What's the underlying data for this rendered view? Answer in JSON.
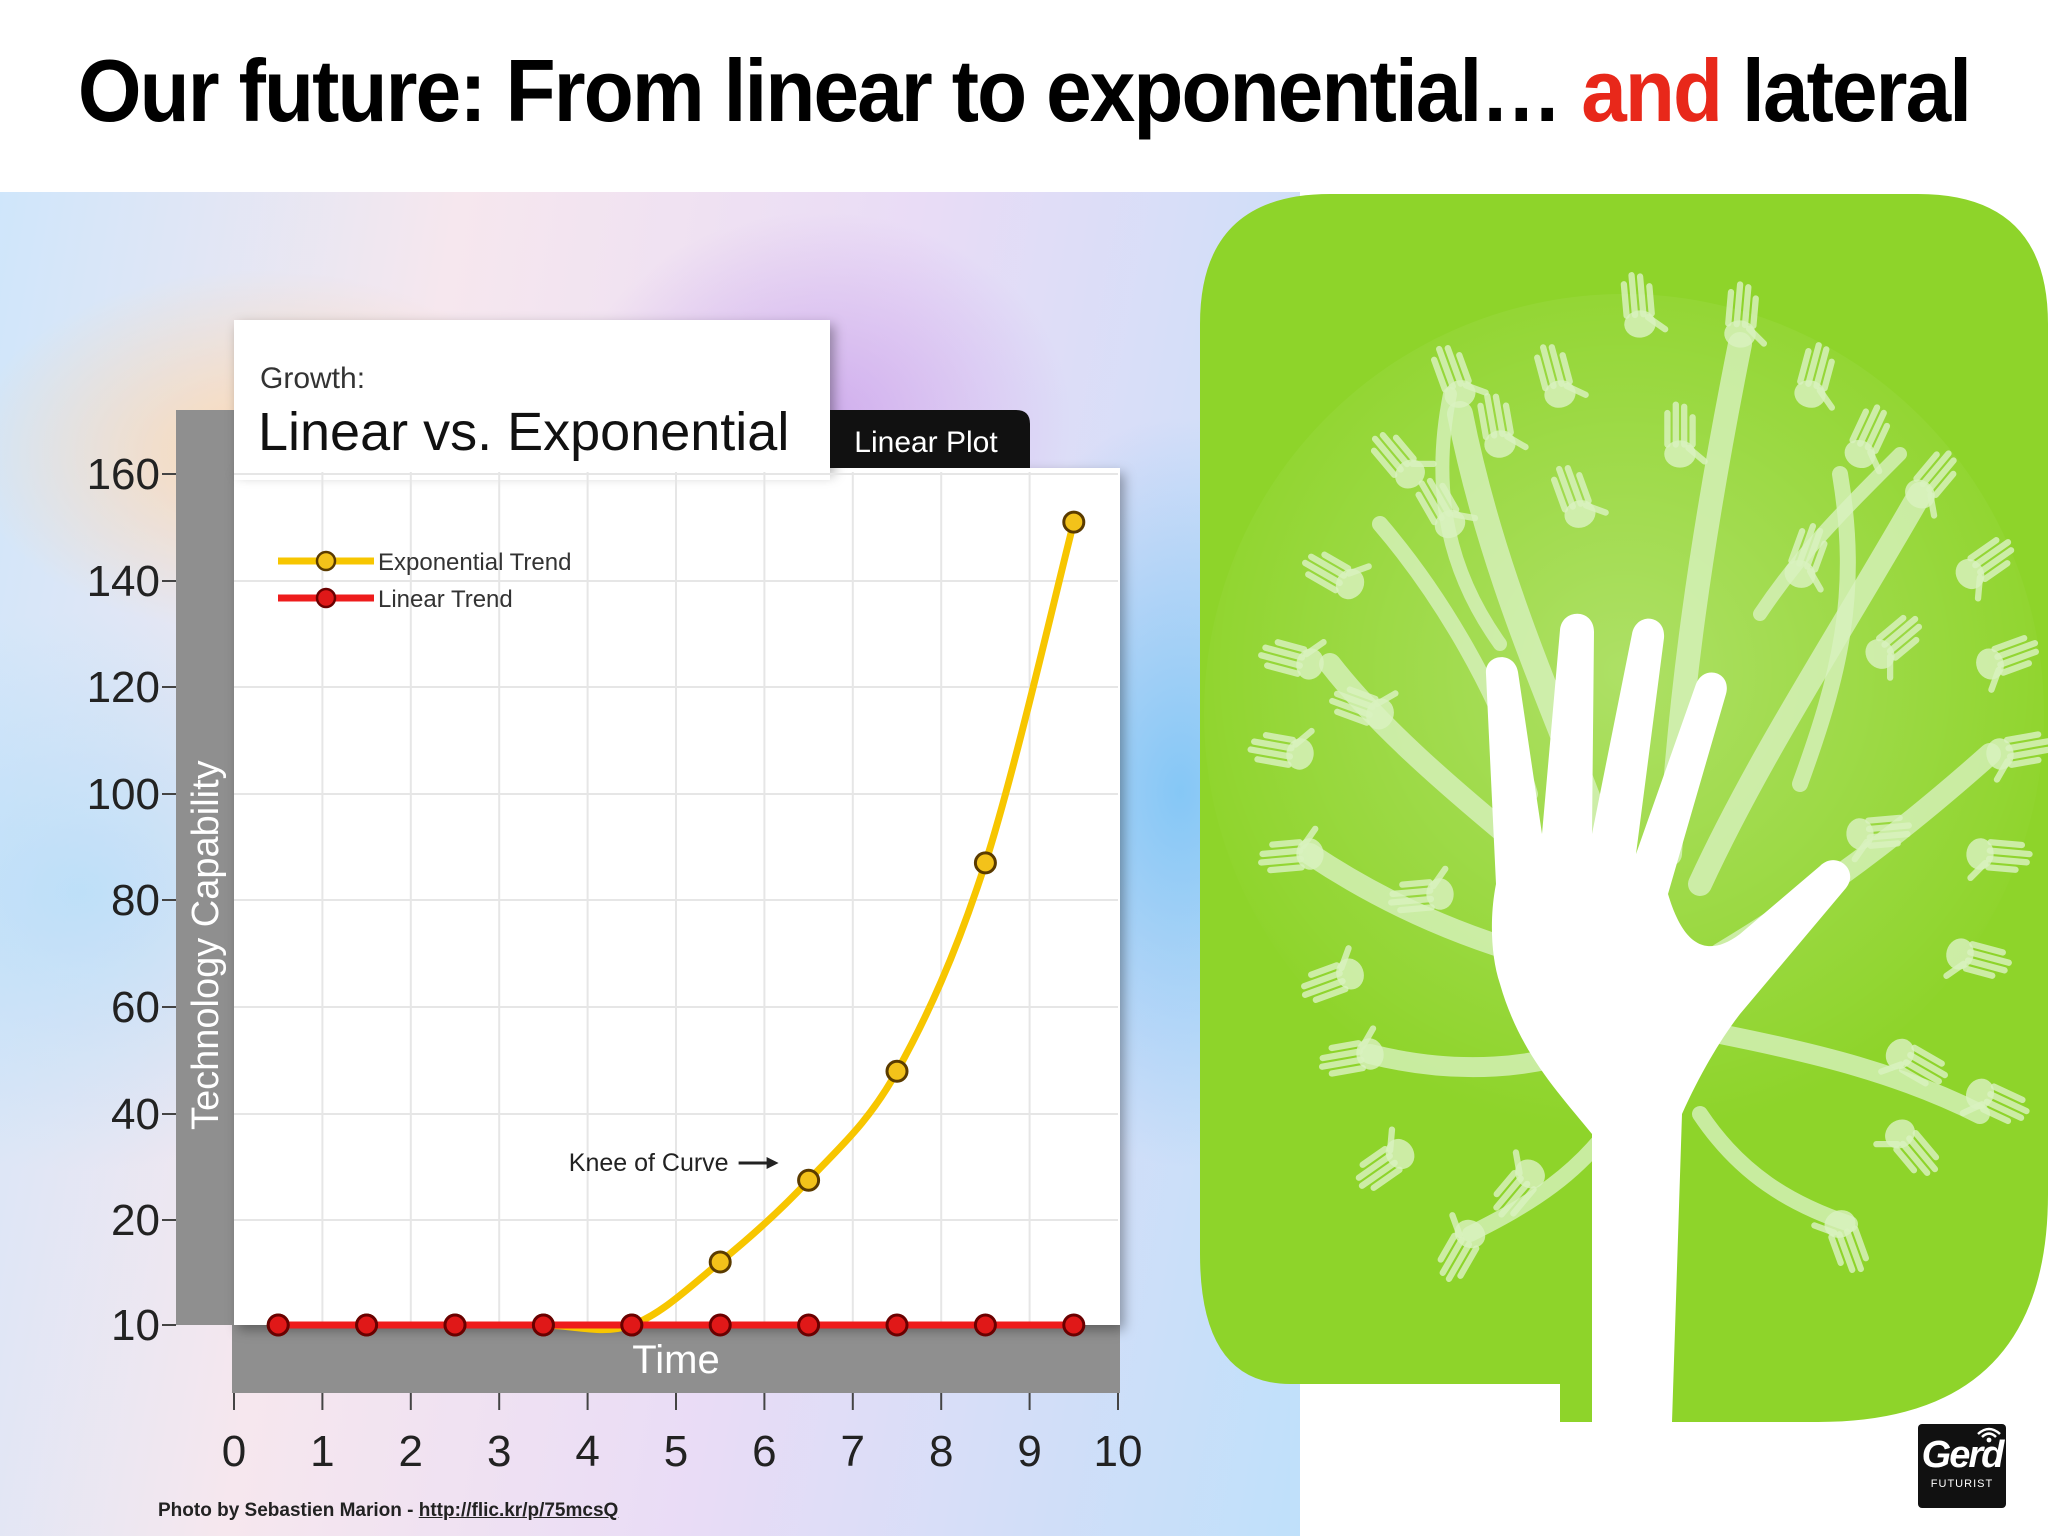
{
  "slide": {
    "headline_main": "Our future: From linear to exponential…",
    "headline_accent": "and",
    "headline_end": "lateral"
  },
  "chart_data": {
    "type": "line",
    "title": "Linear vs. Exponential",
    "supertitle": "Growth:",
    "tag": "Linear Plot",
    "xlabel": "Time",
    "ylabel": "Technology Capability",
    "x_ticks": [
      "0",
      "1",
      "2",
      "3",
      "4",
      "5",
      "6",
      "7",
      "8",
      "9",
      "10"
    ],
    "y_ticks": [
      "10",
      "20",
      "40",
      "60",
      "80",
      "100",
      "120",
      "140",
      "160"
    ],
    "xlim": [
      0,
      10
    ],
    "ylim": [
      0,
      160
    ],
    "grid": true,
    "legend_position": "top-left",
    "series": [
      {
        "name": "Exponential Trend",
        "color": "#f7c600",
        "marker_color": "#f3c21a",
        "x": [
          0.5,
          1.5,
          2.5,
          3.5,
          4.5,
          5.5,
          6.5,
          7.5,
          8.5,
          9.5
        ],
        "y": [
          1,
          1.8,
          3.2,
          5.5,
          9.4,
          16,
          27.5,
          48,
          87,
          151
        ]
      },
      {
        "name": "Linear Trend",
        "color": "#ee1c1c",
        "marker_color": "#e01818",
        "x": [
          0.5,
          1.5,
          2.5,
          3.5,
          4.5,
          5.5,
          6.5,
          7.5,
          8.5,
          9.5
        ],
        "y": [
          0.5,
          1,
          1.5,
          2.5,
          3.5,
          4,
          4.5,
          5,
          5.5,
          6
        ]
      }
    ],
    "annotation": {
      "text": "Knee of Curve",
      "x": 6.5,
      "y": 30
    }
  },
  "illustration": {
    "icon": "hand-tree-icon",
    "background": "#8ed42a"
  },
  "credit": {
    "prefix": "Photo by Sebastien Marion - ",
    "link": "http://flic.kr/p/75mcsQ"
  },
  "logo": {
    "name": "Gerd",
    "subtitle": "FUTURIST"
  }
}
